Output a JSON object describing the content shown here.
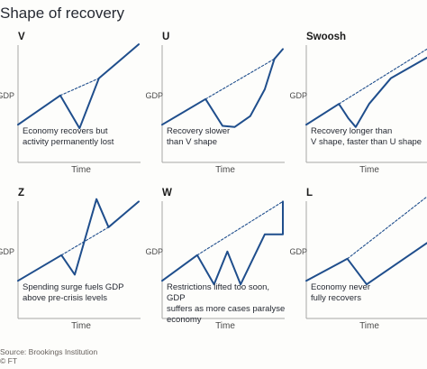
{
  "title": "Shape of recovery",
  "axis": {
    "x_label": "Time",
    "y_label": "GDP"
  },
  "panels": [
    {
      "id": "v",
      "label": "V",
      "description": "Economy recovers but\nactivity permanently lost",
      "y_label_visible": "GDP"
    },
    {
      "id": "u",
      "label": "U",
      "description": "Recovery slower\nthan V shape",
      "y_label_visible": "GDP"
    },
    {
      "id": "swoosh",
      "label": "Swoosh",
      "description": "Recovery longer than\nV shape, faster than U shape",
      "y_label_visible": "GDP"
    },
    {
      "id": "z",
      "label": "Z",
      "description": "Spending surge fuels GDP\nabove pre-crisis levels",
      "y_label_visible": "GDP"
    },
    {
      "id": "w",
      "label": "W",
      "description": "Restrictions lifted too soon, GDP\nsuffers as more cases paralyse\neconomy",
      "y_label_visible": "GDP"
    },
    {
      "id": "l",
      "label": "L",
      "description": "Economy never\nfully recovers",
      "y_label_visible": "GDP"
    }
  ],
  "source": "Source: Brookings Institution",
  "credit": "© FT",
  "colors": {
    "line": "#1f4e8c",
    "axis": "#a6a6a6",
    "text": "#262a33"
  },
  "chart_data": [
    {
      "type": "line",
      "title": "V",
      "xlabel": "Time",
      "ylabel": "GDP",
      "xlim": [
        0,
        10
      ],
      "ylim": [
        0,
        10
      ],
      "series": [
        {
          "values": [
            [
              0,
              3.1
            ],
            [
              3.5,
              5.5
            ],
            [
              5.1,
              2.8
            ],
            [
              6.7,
              6.9
            ],
            [
              10,
              9.7
            ]
          ]
        },
        {
          "style": "dashed",
          "values": [
            [
              3.5,
              5.5
            ],
            [
              6.7,
              6.9
            ]
          ]
        }
      ]
    },
    {
      "type": "line",
      "title": "U",
      "xlabel": "Time",
      "ylabel": "GDP",
      "xlim": [
        0,
        10
      ],
      "ylim": [
        0,
        10
      ],
      "series": [
        {
          "values": [
            [
              0,
              3.1
            ],
            [
              3.6,
              5.2
            ],
            [
              5.0,
              3.0
            ],
            [
              6.0,
              2.9
            ],
            [
              7.3,
              3.8
            ],
            [
              8.5,
              6.0
            ],
            [
              9.3,
              8.5
            ]
          ]
        },
        {
          "style": "dashed",
          "values": [
            [
              3.6,
              5.2
            ],
            [
              9.3,
              8.5
            ]
          ]
        },
        {
          "values": [
            [
              9.3,
              8.5
            ],
            [
              10,
              9.3
            ]
          ]
        }
      ]
    },
    {
      "type": "line",
      "title": "Swoosh",
      "xlabel": "Time",
      "ylabel": "GDP",
      "xlim": [
        0,
        10
      ],
      "ylim": [
        0,
        10
      ],
      "series": [
        {
          "values": [
            [
              0,
              3.1
            ],
            [
              2.7,
              4.8
            ],
            [
              3.5,
              3.6
            ],
            [
              4.1,
              2.9
            ],
            [
              5.2,
              4.8
            ],
            [
              7.0,
              6.9
            ],
            [
              10,
              8.6
            ]
          ]
        },
        {
          "style": "dashed",
          "values": [
            [
              2.7,
              4.8
            ],
            [
              10,
              9.3
            ]
          ]
        }
      ]
    },
    {
      "type": "line",
      "title": "Z",
      "xlabel": "Time",
      "ylabel": "GDP",
      "xlim": [
        0,
        10
      ],
      "ylim": [
        0,
        10
      ],
      "series": [
        {
          "values": [
            [
              0,
              3.1
            ],
            [
              3.6,
              5.2
            ],
            [
              4.7,
              3.6
            ],
            [
              6.5,
              9.8
            ],
            [
              7.5,
              7.5
            ],
            [
              10,
              9.6
            ]
          ]
        },
        {
          "style": "dashed",
          "values": [
            [
              3.6,
              5.2
            ],
            [
              7.5,
              7.5
            ]
          ]
        }
      ]
    },
    {
      "type": "line",
      "title": "W",
      "xlabel": "Time",
      "ylabel": "GDP",
      "xlim": [
        0,
        10
      ],
      "ylim": [
        0,
        10
      ],
      "series": [
        {
          "values": [
            [
              0,
              3.1
            ],
            [
              2.9,
              5.2
            ],
            [
              4.3,
              2.8
            ],
            [
              5.4,
              5.5
            ],
            [
              6.5,
              2.8
            ],
            [
              8.5,
              6.9
            ],
            [
              10,
              6.9
            ],
            [
              10,
              9.6
            ]
          ]
        },
        {
          "style": "dashed",
          "values": [
            [
              2.9,
              5.2
            ],
            [
              10,
              9.6
            ]
          ]
        }
      ]
    },
    {
      "type": "line",
      "title": "L",
      "xlabel": "Time",
      "ylabel": "GDP",
      "xlim": [
        0,
        10
      ],
      "ylim": [
        0,
        10
      ],
      "series": [
        {
          "values": [
            [
              0,
              3.1
            ],
            [
              3.4,
              4.9
            ],
            [
              5.0,
              2.8
            ],
            [
              10,
              6.2
            ]
          ]
        },
        {
          "style": "dashed",
          "values": [
            [
              3.4,
              4.9
            ],
            [
              10,
              10
            ]
          ]
        }
      ]
    }
  ]
}
